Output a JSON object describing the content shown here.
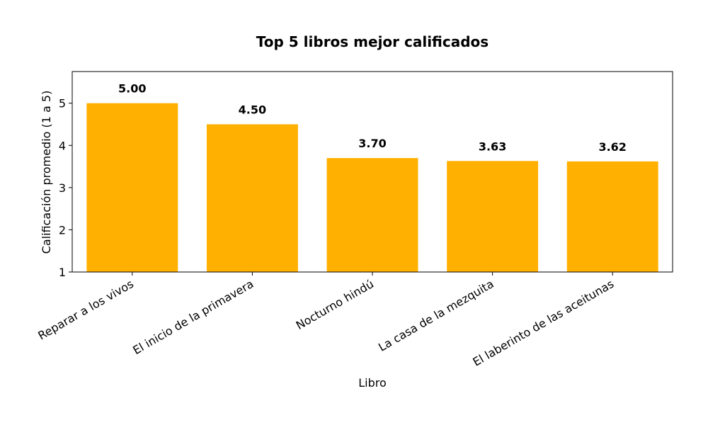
{
  "chart_data": {
    "type": "bar",
    "title": "Top 5 libros mejor calificados",
    "xlabel": "Libro",
    "ylabel": "Calificación promedio (1 a 5)",
    "categories": [
      "Reparar a los vivos",
      "El inicio de la primavera",
      "Nocturno hindú",
      "La casa de la mezquita",
      "El laberinto de las aceitunas"
    ],
    "values": [
      5.0,
      4.5,
      3.7,
      3.63,
      3.62
    ],
    "data_labels": [
      "5.00",
      "4.50",
      "3.70",
      "3.63",
      "3.62"
    ],
    "ylim": [
      1,
      5.75
    ],
    "yticks": [
      1,
      2,
      3,
      4,
      5
    ],
    "bar_color": "#FFB000",
    "grid": false,
    "legend": "none"
  }
}
